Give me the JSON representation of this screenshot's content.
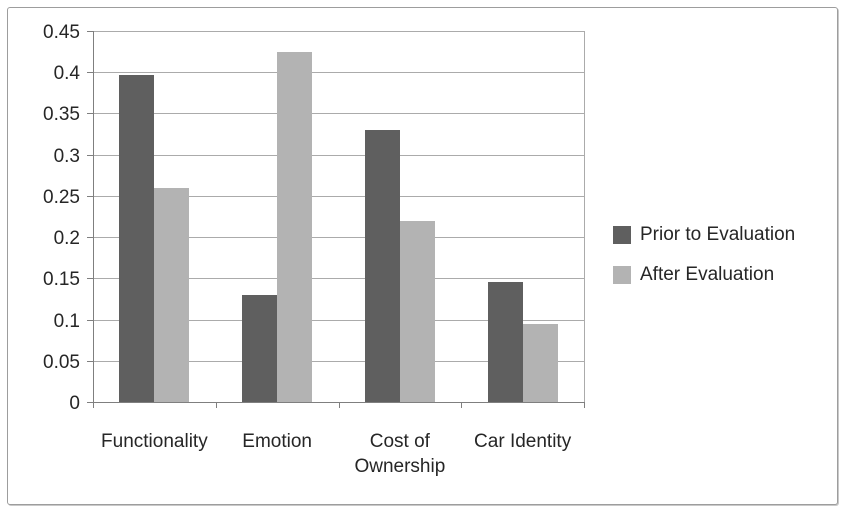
{
  "chart_data": {
    "type": "bar",
    "title": "",
    "xlabel": "",
    "ylabel": "",
    "categories": [
      "Functionality",
      "Emotion",
      "Cost of Ownership",
      "Car Identity"
    ],
    "series": [
      {
        "name": "Prior to Evaluation",
        "color": "#5f5f5f",
        "values": [
          0.397,
          0.13,
          0.33,
          0.145
        ]
      },
      {
        "name": "After Evaluation",
        "color": "#b3b3b3",
        "values": [
          0.26,
          0.425,
          0.22,
          0.095
        ]
      }
    ],
    "ylim": [
      0,
      0.45
    ],
    "yticks": [
      "0",
      "0.05",
      "0.1",
      "0.15",
      "0.2",
      "0.25",
      "0.3",
      "0.35",
      "0.4",
      "0.45"
    ],
    "grid": true,
    "legend_position": "right",
    "colors": {
      "gridline": "#ababab",
      "axis": "#7f7f7f",
      "text": "#262626",
      "chart_border": "#9d9d9d",
      "background": "#ffffff"
    }
  }
}
